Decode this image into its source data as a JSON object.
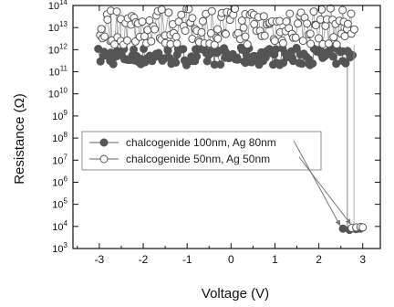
{
  "chart_data": {
    "type": "scatter",
    "title": "",
    "xlabel": "Voltage (V)",
    "ylabel": "Resistance (Ω)",
    "xlim": [
      -3.6,
      3.4
    ],
    "ylim": [
      1000,
      100000000000000.0
    ],
    "yscale": "log",
    "x_ticks": [
      -3,
      -2,
      -1,
      0,
      1,
      2,
      3
    ],
    "y_tick_exponents": [
      3,
      4,
      5,
      6,
      7,
      8,
      9,
      10,
      11,
      12,
      13,
      14
    ],
    "grid": false,
    "legend_position": "middle-left",
    "series": [
      {
        "name": "chalcogenide 100nm, Ag 80nm",
        "marker": "filled-circle",
        "color": "#555555",
        "high_state_x_range": [
          -3.0,
          2.75
        ],
        "high_state_log10_r_range": [
          11.3,
          12.1
        ],
        "switch_voltage": 2.65,
        "low_state_points": [
          [
            2.55,
            8000
          ],
          [
            2.7,
            7000
          ],
          [
            2.85,
            7500
          ],
          [
            2.95,
            8000
          ]
        ]
      },
      {
        "name": "chalcogenide 50nm, Ag 50nm",
        "marker": "open-circle",
        "color": "#555555",
        "high_state_x_range": [
          -3.0,
          2.8
        ],
        "high_state_log10_r_range": [
          12.2,
          13.9
        ],
        "switch_voltage": 2.8,
        "low_state_points": [
          [
            2.75,
            8500
          ],
          [
            2.85,
            9000
          ],
          [
            2.95,
            9500
          ],
          [
            3.0,
            9000
          ]
        ]
      }
    ]
  }
}
